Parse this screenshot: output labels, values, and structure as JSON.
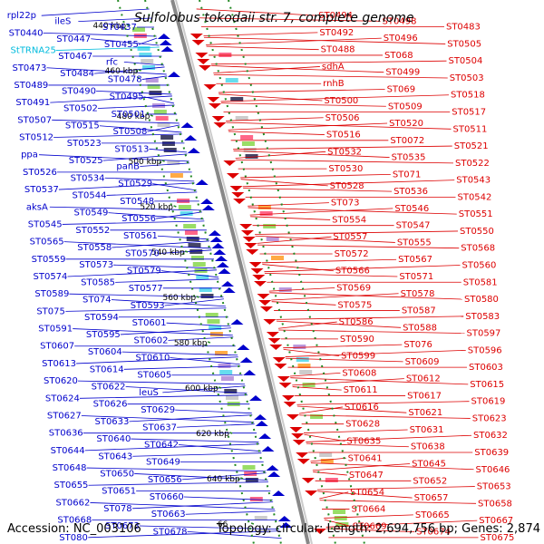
{
  "title": "Sulfolobus tokodaii str. 7, complete genome",
  "accession": "Accession: NC_003106",
  "summary": "Topology: circular; Length: 2,694,756 bp; Genes: 2,874",
  "colors": {
    "minus_strand": "#0000cc",
    "plus_strand": "#dd0000",
    "rna": "#00bbdd",
    "backbone": "#888888",
    "ticks": "#228822"
  },
  "kbp_ticks": [
    "440 kbp",
    "460 kbp",
    "480 kbp",
    "500 kbp",
    "520 kbp",
    "540 kbp",
    "560 kbp",
    "580 kbp",
    "600 kbp",
    "620 kbp",
    "640 kbp",
    "66"
  ],
  "left_genes": [
    "rpl22p",
    "ileS",
    "ST0437",
    "ST0440",
    "ST0447",
    "ST0455",
    "StTRNA25",
    "ST0467",
    "rfc",
    "ST0473",
    "ST0484",
    "ST0478",
    "ST0489",
    "ST0490",
    "ST0495",
    "ST0491",
    "ST0502",
    "ST0501",
    "ST0507",
    "ST0515",
    "ST0508",
    "ST0512",
    "ST0523",
    "ST0513",
    "ppa",
    "ST0525",
    "panB",
    "ST0526",
    "ST0534",
    "ST0529",
    "ST0537",
    "ST0544",
    "ST0548",
    "aksA",
    "ST0549",
    "ST0556",
    "ST0545",
    "ST0552",
    "ST0561",
    "ST0565",
    "ST0558",
    "ST0570",
    "ST0559",
    "ST0573",
    "ST0579",
    "ST0574",
    "ST0585",
    "ST0577",
    "ST0589",
    "ST074",
    "ST0593",
    "ST075",
    "ST0594",
    "ST0601",
    "ST0591",
    "ST0595",
    "ST0602",
    "ST0607",
    "ST0604",
    "ST0610",
    "ST0613",
    "ST0614",
    "ST0605",
    "ST0620",
    "ST0622",
    "leuS",
    "ST0624",
    "ST0626",
    "ST0629",
    "ST0627",
    "ST0633",
    "ST0637",
    "ST0636",
    "ST0640",
    "ST0642",
    "ST0644",
    "ST0643",
    "ST0649",
    "ST0648",
    "ST0650",
    "ST0656",
    "ST0655",
    "ST0651",
    "ST0660",
    "ST0662",
    "ST078",
    "ST0663",
    "ST0668",
    "ST0673",
    "ST0678",
    "ST080"
  ],
  "right_genes": [
    "ST0494",
    "ST0498",
    "ST0483",
    "ST0492",
    "ST0496",
    "ST0505",
    "ST0488",
    "ST068",
    "ST0504",
    "sdhA",
    "ST0499",
    "ST0503",
    "rnhB",
    "ST069",
    "ST0518",
    "ST0500",
    "ST0509",
    "ST0517",
    "ST0506",
    "ST0520",
    "ST0511",
    "ST0516",
    "ST0072",
    "ST0521",
    "ST0532",
    "ST0535",
    "ST0522",
    "ST0530",
    "ST071",
    "ST0543",
    "ST0528",
    "ST0536",
    "ST0542",
    "ST073",
    "ST0546",
    "ST0551",
    "ST0554",
    "ST0547",
    "ST0550",
    "ST0557",
    "ST0555",
    "ST0568",
    "ST0572",
    "ST0567",
    "ST0560",
    "ST0566",
    "ST0571",
    "ST0581",
    "ST0569",
    "ST0578",
    "ST0580",
    "ST0575",
    "ST0587",
    "ST0583",
    "ST0586",
    "ST0588",
    "ST0597",
    "ST0590",
    "ST076",
    "ST0596",
    "ST0599",
    "ST0609",
    "ST0603",
    "ST0608",
    "ST0612",
    "ST0615",
    "ST0611",
    "ST0617",
    "ST0619",
    "ST0616",
    "ST0621",
    "ST0623",
    "ST0628",
    "ST0631",
    "ST0632",
    "ST0635",
    "ST0638",
    "ST0639",
    "ST0641",
    "ST0645",
    "ST0646",
    "ST0647",
    "ST0652",
    "ST0653",
    "ST0654",
    "ST0657",
    "ST0658",
    "ST0664",
    "ST0665",
    "ST0667",
    "ST0669",
    "ST0674",
    "ST0675"
  ]
}
